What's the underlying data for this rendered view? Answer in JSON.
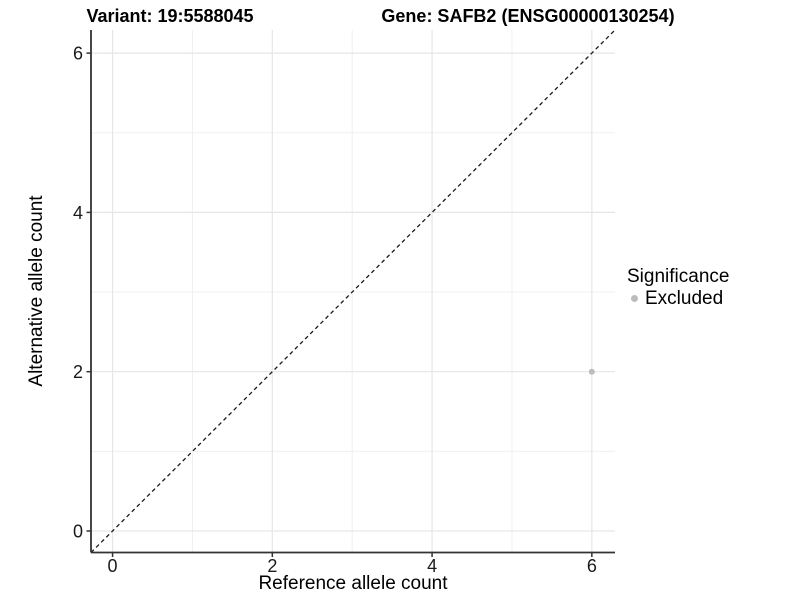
{
  "chart_data": {
    "type": "scatter",
    "title_left": "Variant: 19:5588045",
    "title_right": "Gene: SAFB2 (ENSG00000130254)",
    "xlabel": "Reference allele count",
    "ylabel": "Alternative allele count",
    "xlim": [
      -0.27,
      6.29
    ],
    "ylim": [
      -0.27,
      6.29
    ],
    "xticks": [
      0,
      2,
      4,
      6
    ],
    "yticks": [
      0,
      2,
      4,
      6
    ],
    "minor_xticks": [
      1,
      3,
      5
    ],
    "minor_yticks": [
      1,
      3,
      5
    ],
    "grid": "major+minor on white panel",
    "identity_line": {
      "equation": "y = x",
      "style": "dashed",
      "color": "#1a1a1a"
    },
    "series": [
      {
        "name": "Excluded",
        "color": "#bcbcbc",
        "points": [
          {
            "x": 6,
            "y": 2
          }
        ]
      }
    ],
    "legend": {
      "title": "Significance",
      "position": "right",
      "items": [
        {
          "label": "Excluded",
          "color": "#bcbcbc",
          "marker": "circle"
        }
      ]
    }
  },
  "colors": {
    "background": "#ffffff",
    "grid_major": "#e6e6e6",
    "grid_minor": "#f0f0f0",
    "axis_line": "#333333",
    "tick_mark": "#333333",
    "tick_label": "#1a1a1a",
    "point": "#bcbcbc"
  }
}
